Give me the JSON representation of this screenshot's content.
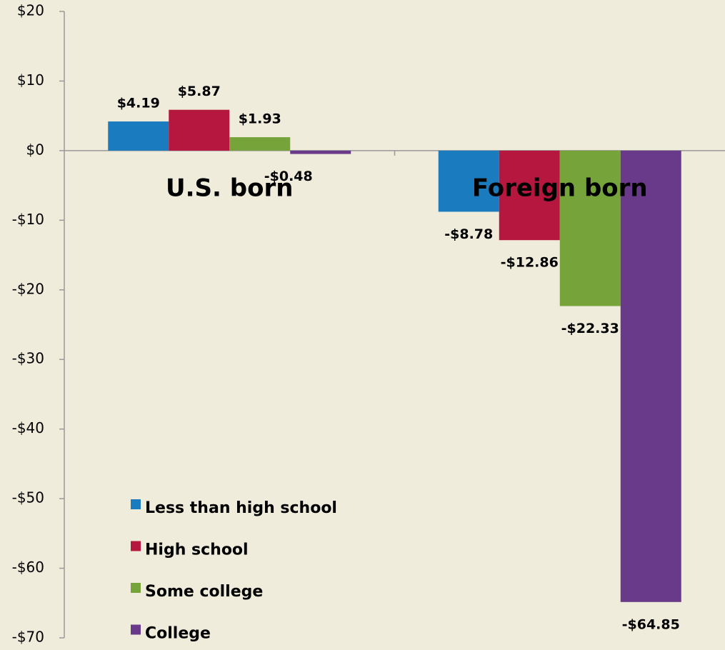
{
  "chart_data": {
    "type": "bar",
    "categories": [
      "U.S. born",
      "Foreign born"
    ],
    "series": [
      {
        "name": "Less than high school",
        "color": "#1a7bbf",
        "values": [
          4.19,
          -8.78
        ],
        "value_labels": [
          "$4.19",
          "-$8.78"
        ]
      },
      {
        "name": "High school",
        "color": "#b5173f",
        "values": [
          5.87,
          -12.86
        ],
        "value_labels": [
          "$5.87",
          "-$12.86"
        ]
      },
      {
        "name": "Some college",
        "color": "#76a33a",
        "values": [
          1.93,
          -22.33
        ],
        "value_labels": [
          "$1.93",
          "-$22.33"
        ]
      },
      {
        "name": "College",
        "color": "#6a3a8a",
        "values": [
          -0.48,
          -64.85
        ],
        "value_labels": [
          "-$0.48",
          "-$64.85"
        ]
      }
    ],
    "ylim": [
      -70,
      20
    ],
    "yticks": [
      {
        "value": -70,
        "label": "-$70"
      },
      {
        "value": -60,
        "label": "-$60"
      },
      {
        "value": -50,
        "label": "-$50"
      },
      {
        "value": -40,
        "label": "-$40"
      },
      {
        "value": -30,
        "label": "-$30"
      },
      {
        "value": -20,
        "label": "-$20"
      },
      {
        "value": -10,
        "label": "-$10"
      },
      {
        "value": 0,
        "label": "$0"
      },
      {
        "value": 10,
        "label": "$10"
      },
      {
        "value": 20,
        "label": "$20"
      }
    ],
    "legend": "lower left"
  }
}
